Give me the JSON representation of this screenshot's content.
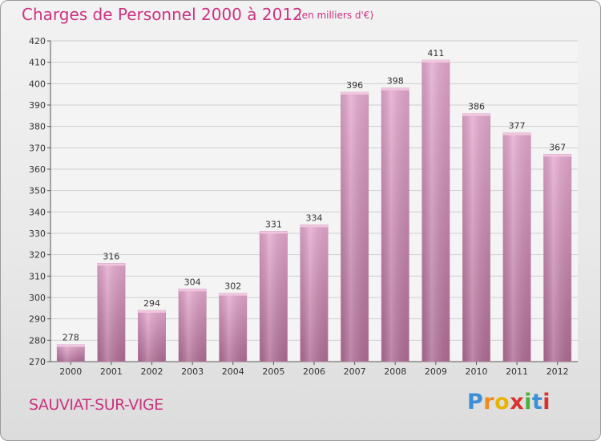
{
  "header": {
    "title": "Charges de Personnel 2000 à 2012",
    "subtitle": "(en milliers d'€)"
  },
  "footer": {
    "commune": "SAUVIAT-SUR-VIGE"
  },
  "logo": {
    "letters": [
      "P",
      "r",
      "o",
      "x",
      "i",
      "t",
      "i"
    ],
    "colors": [
      "#3a8fd6",
      "#f08a1c",
      "#e8b400",
      "#d9312b",
      "#4caf3a",
      "#3a8fd6",
      "#d9312b"
    ]
  },
  "chart_data": {
    "type": "bar",
    "categories": [
      "2000",
      "2001",
      "2002",
      "2003",
      "2004",
      "2005",
      "2006",
      "2007",
      "2008",
      "2009",
      "2010",
      "2011",
      "2012"
    ],
    "values": [
      278,
      316,
      294,
      304,
      302,
      331,
      334,
      396,
      398,
      411,
      386,
      377,
      367
    ],
    "title": "Charges de Personnel 2000 à 2012",
    "subtitle": "(en milliers d'€)",
    "ylim": [
      270,
      420
    ],
    "yticks": [
      270,
      280,
      290,
      300,
      310,
      320,
      330,
      340,
      350,
      360,
      370,
      380,
      390,
      400,
      410,
      420
    ],
    "grid": true,
    "bar_color": "#d98fb8",
    "bar_color_dark": "#b56e98"
  }
}
